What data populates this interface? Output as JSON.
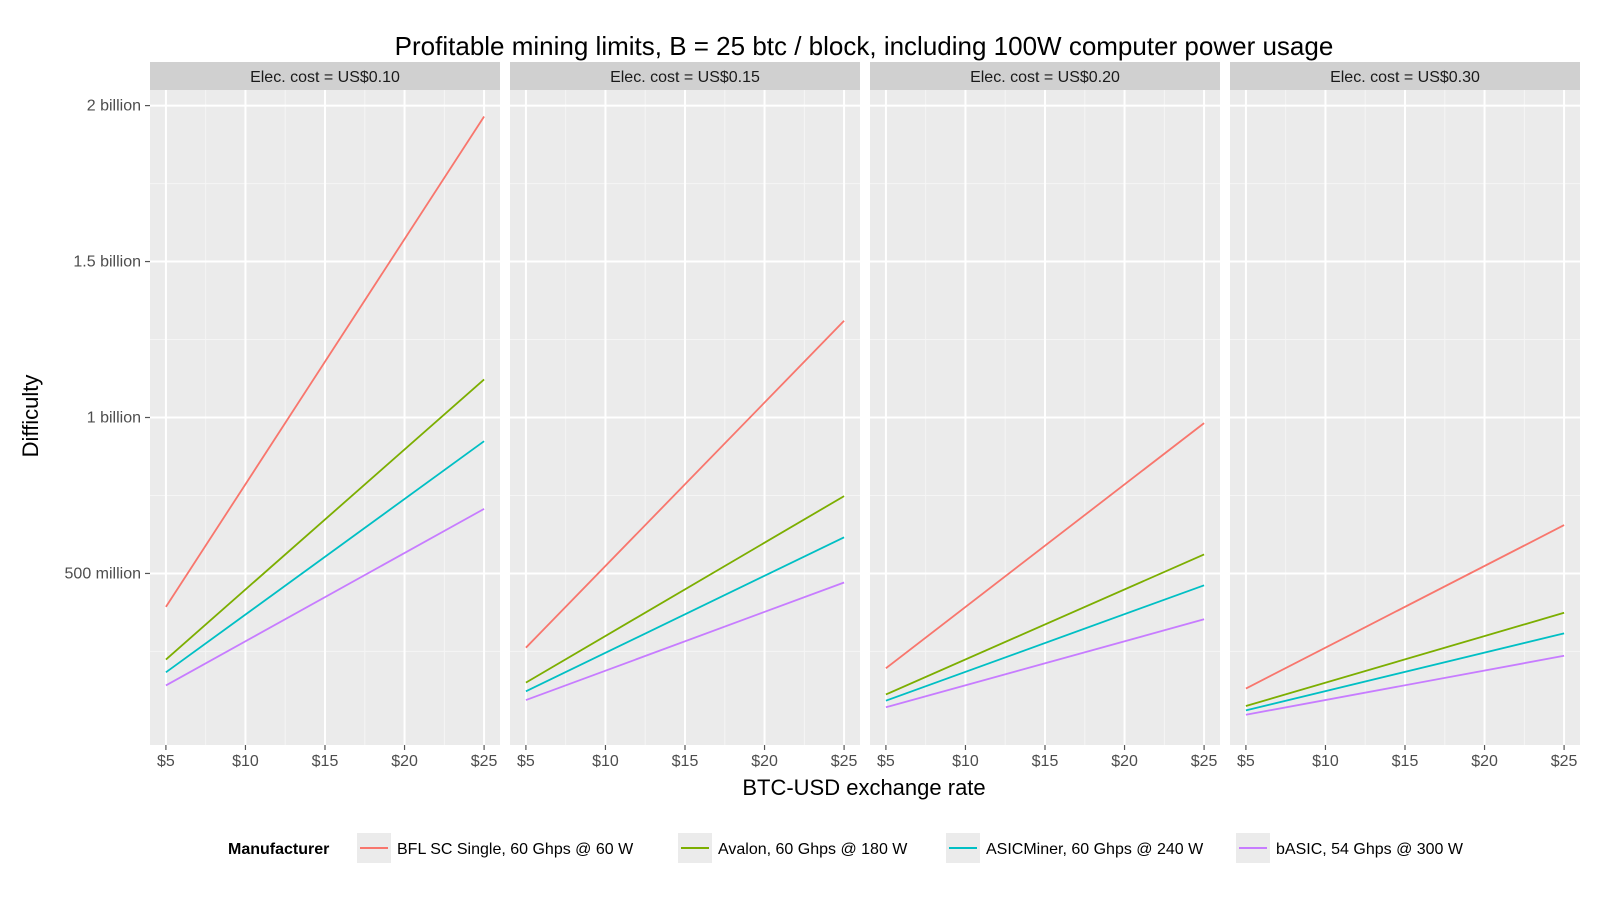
{
  "chart_data": {
    "type": "line",
    "title": "Profitable mining limits, B = 25 btc / block, including 100W computer power usage",
    "xlabel": "BTC-USD exchange rate",
    "ylabel": "Difficulty",
    "x": [
      5,
      25
    ],
    "xticks": [
      5,
      10,
      15,
      20,
      25
    ],
    "xtick_labels": [
      "$5",
      "$10",
      "$15",
      "$20",
      "$25"
    ],
    "xlim": [
      4,
      26
    ],
    "yticks": [
      500000000,
      1000000000,
      1500000000,
      2000000000
    ],
    "ytick_labels": [
      "500 million",
      "1 billion",
      "1.5 billion",
      "2 billion"
    ],
    "ylim": [
      -50000000,
      2050000000
    ],
    "grid": true,
    "legend": {
      "title": "Manufacturer",
      "position": "bottom",
      "entries": [
        {
          "name": "BFL SC Single, 60 Ghps @ 60 W",
          "color": "#F8766D"
        },
        {
          "name": "Avalon, 60 Ghps @ 180 W",
          "color": "#7CAE00"
        },
        {
          "name": "ASICMiner, 60 Ghps @ 240 W",
          "color": "#00BFC4"
        },
        {
          "name": "bASIC, 54 Ghps @ 300 W",
          "color": "#C77CFF"
        }
      ]
    },
    "facets": [
      {
        "label": "Elec. cost = US$0.10",
        "series": [
          {
            "name": "BFL SC Single, 60 Ghps @ 60 W",
            "values": [
              393000000,
              1965000000
            ]
          },
          {
            "name": "Avalon, 60 Ghps @ 180 W",
            "values": [
              224000000,
              1122000000
            ]
          },
          {
            "name": "ASICMiner, 60 Ghps @ 240 W",
            "values": [
              183000000,
              924000000
            ]
          },
          {
            "name": "bASIC, 54 Ghps @ 300 W",
            "values": [
              141000000,
              707000000
            ]
          }
        ]
      },
      {
        "label": "Elec. cost = US$0.15",
        "series": [
          {
            "name": "BFL SC Single, 60 Ghps @ 60 W",
            "values": [
              262000000,
              1310000000
            ]
          },
          {
            "name": "Avalon, 60 Ghps @ 180 W",
            "values": [
              150000000,
              748000000
            ]
          },
          {
            "name": "ASICMiner, 60 Ghps @ 240 W",
            "values": [
              122000000,
              616000000
            ]
          },
          {
            "name": "bASIC, 54 Ghps @ 300 W",
            "values": [
              94000000,
              471000000
            ]
          }
        ]
      },
      {
        "label": "Elec. cost = US$0.20",
        "series": [
          {
            "name": "BFL SC Single, 60 Ghps @ 60 W",
            "values": [
              196000000,
              982000000
            ]
          },
          {
            "name": "Avalon, 60 Ghps @ 180 W",
            "values": [
              112000000,
              561000000
            ]
          },
          {
            "name": "ASICMiner, 60 Ghps @ 240 W",
            "values": [
              92000000,
              462000000
            ]
          },
          {
            "name": "bASIC, 54 Ghps @ 300 W",
            "values": [
              71000000,
              353000000
            ]
          }
        ]
      },
      {
        "label": "Elec. cost = US$0.30",
        "series": [
          {
            "name": "BFL SC Single, 60 Ghps @ 60 W",
            "values": [
              131000000,
              655000000
            ]
          },
          {
            "name": "Avalon, 60 Ghps @ 180 W",
            "values": [
              75000000,
              374000000
            ]
          },
          {
            "name": "ASICMiner, 60 Ghps @ 240 W",
            "values": [
              61000000,
              308000000
            ]
          },
          {
            "name": "bASIC, 54 Ghps @ 300 W",
            "values": [
              47000000,
              236000000
            ]
          }
        ]
      }
    ]
  }
}
